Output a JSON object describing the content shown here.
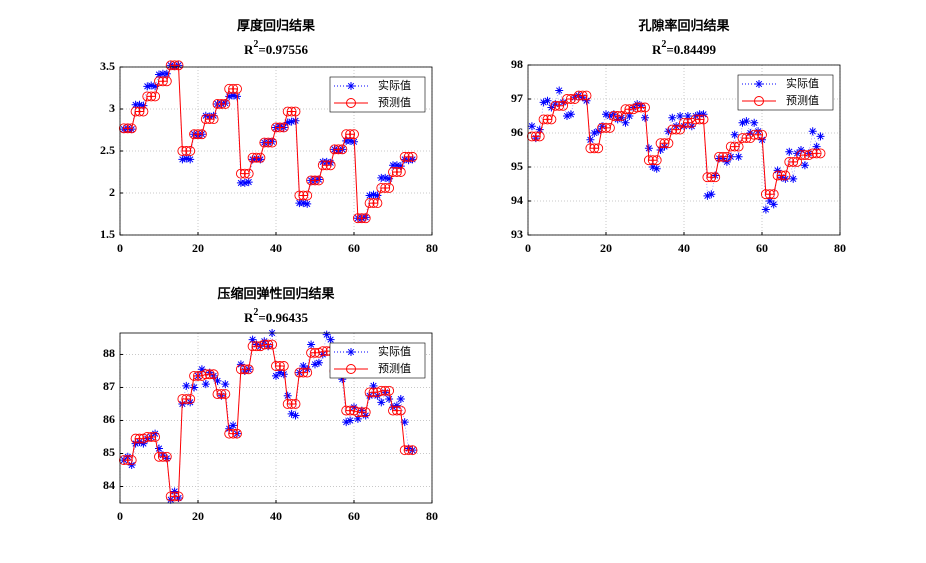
{
  "chart_data": [
    {
      "type": "line",
      "title": "厚度回归结果",
      "subtitle": {
        "base": "R",
        "sup": "2",
        "rest": "=0.97556"
      },
      "x": [
        1,
        2,
        3,
        4,
        5,
        6,
        7,
        8,
        9,
        10,
        11,
        12,
        13,
        14,
        15,
        16,
        17,
        18,
        19,
        20,
        21,
        22,
        23,
        24,
        25,
        26,
        27,
        28,
        29,
        30,
        31,
        32,
        33,
        34,
        35,
        36,
        37,
        38,
        39,
        40,
        41,
        42,
        43,
        44,
        45,
        46,
        47,
        48,
        49,
        50,
        51,
        52,
        53,
        54,
        55,
        56,
        57,
        58,
        59,
        60,
        61,
        62,
        63,
        64,
        65,
        66,
        67,
        68,
        69,
        70,
        71,
        72,
        73,
        74,
        75
      ],
      "series": [
        {
          "name": "实际值",
          "color": "#0000ff",
          "values": [
            2.76,
            2.77,
            2.76,
            3.05,
            3.05,
            3.04,
            3.27,
            3.28,
            3.27,
            3.41,
            3.42,
            3.42,
            3.52,
            3.51,
            3.52,
            2.4,
            2.41,
            2.4,
            2.7,
            2.69,
            2.7,
            2.92,
            2.91,
            2.92,
            3.06,
            3.06,
            3.07,
            3.15,
            3.16,
            3.15,
            2.12,
            2.12,
            2.13,
            2.4,
            2.41,
            2.4,
            2.6,
            2.6,
            2.61,
            2.78,
            2.79,
            2.78,
            2.84,
            2.85,
            2.86,
            1.88,
            1.88,
            1.87,
            2.15,
            2.15,
            2.16,
            2.37,
            2.37,
            2.36,
            2.52,
            2.51,
            2.52,
            2.62,
            2.62,
            2.61,
            1.7,
            1.7,
            1.71,
            1.97,
            1.98,
            1.97,
            2.18,
            2.18,
            2.17,
            2.33,
            2.33,
            2.32,
            2.4,
            2.39,
            2.4
          ]
        },
        {
          "name": "预测值",
          "color": "#ff0000",
          "values": [
            2.77,
            2.77,
            2.77,
            2.97,
            2.97,
            2.97,
            3.15,
            3.15,
            3.15,
            3.33,
            3.33,
            3.33,
            3.52,
            3.52,
            3.52,
            2.5,
            2.5,
            2.5,
            2.7,
            2.7,
            2.7,
            2.88,
            2.88,
            2.88,
            3.06,
            3.06,
            3.06,
            3.24,
            3.24,
            3.24,
            2.23,
            2.23,
            2.23,
            2.42,
            2.42,
            2.42,
            2.6,
            2.6,
            2.6,
            2.78,
            2.78,
            2.78,
            2.97,
            2.97,
            2.97,
            1.97,
            1.97,
            1.97,
            2.15,
            2.15,
            2.15,
            2.33,
            2.33,
            2.33,
            2.52,
            2.52,
            2.52,
            2.7,
            2.7,
            2.7,
            1.7,
            1.7,
            1.7,
            1.88,
            1.88,
            1.88,
            2.06,
            2.06,
            2.06,
            2.25,
            2.25,
            2.25,
            2.43,
            2.43,
            2.43
          ]
        }
      ],
      "xlim": [
        0,
        80
      ],
      "xticks": [
        0,
        20,
        40,
        60,
        80
      ],
      "ylim": [
        1.5,
        3.5
      ],
      "yticks": [
        1.5,
        2,
        2.5,
        3,
        3.5
      ],
      "grid": true,
      "legend": "upper right"
    },
    {
      "type": "line",
      "title": "孔隙率回归结果",
      "subtitle": {
        "base": "R",
        "sup": "2",
        "rest": "=0.84499"
      },
      "x": [
        1,
        2,
        3,
        4,
        5,
        6,
        7,
        8,
        9,
        10,
        11,
        12,
        13,
        14,
        15,
        16,
        17,
        18,
        19,
        20,
        21,
        22,
        23,
        24,
        25,
        26,
        27,
        28,
        29,
        30,
        31,
        32,
        33,
        34,
        35,
        36,
        37,
        38,
        39,
        40,
        41,
        42,
        43,
        44,
        45,
        46,
        47,
        48,
        49,
        50,
        51,
        52,
        53,
        54,
        55,
        56,
        57,
        58,
        59,
        60,
        61,
        62,
        63,
        64,
        65,
        66,
        67,
        68,
        69,
        70,
        71,
        72,
        73,
        74,
        75
      ],
      "series": [
        {
          "name": "实际值",
          "color": "#0000ff",
          "values": [
            96.2,
            95.85,
            96.1,
            96.9,
            96.95,
            96.75,
            96.85,
            97.25,
            96.9,
            96.5,
            96.55,
            97.05,
            97.1,
            97.05,
            96.95,
            95.8,
            96.0,
            96.05,
            96.2,
            96.55,
            96.5,
            96.55,
            96.4,
            96.45,
            96.3,
            96.5,
            96.75,
            96.85,
            96.8,
            96.45,
            95.55,
            95.0,
            94.95,
            95.5,
            95.6,
            96.05,
            96.45,
            96.2,
            96.5,
            96.2,
            96.5,
            96.2,
            96.5,
            96.55,
            96.55,
            94.15,
            94.2,
            94.75,
            95.25,
            95.25,
            95.15,
            95.3,
            95.95,
            95.3,
            96.3,
            96.35,
            96.0,
            96.3,
            96.05,
            95.8,
            93.75,
            94.0,
            93.9,
            94.9,
            94.7,
            94.65,
            95.45,
            94.65,
            95.4,
            95.5,
            95.05,
            95.4,
            96.05,
            95.6,
            95.9
          ]
        },
        {
          "name": "预测值",
          "color": "#ff0000",
          "values": [
            95.9,
            95.9,
            95.9,
            96.4,
            96.4,
            96.4,
            96.8,
            96.8,
            96.8,
            97.0,
            97.0,
            97.0,
            97.1,
            97.1,
            97.1,
            95.55,
            95.55,
            95.55,
            96.15,
            96.15,
            96.15,
            96.5,
            96.5,
            96.5,
            96.7,
            96.7,
            96.7,
            96.75,
            96.75,
            96.75,
            95.2,
            95.2,
            95.2,
            95.7,
            95.7,
            95.7,
            96.1,
            96.1,
            96.1,
            96.3,
            96.3,
            96.3,
            96.4,
            96.4,
            96.4,
            94.7,
            94.7,
            94.7,
            95.3,
            95.3,
            95.3,
            95.6,
            95.6,
            95.6,
            95.85,
            95.85,
            95.85,
            95.95,
            95.95,
            95.95,
            94.2,
            94.2,
            94.2,
            94.75,
            94.75,
            94.75,
            95.15,
            95.15,
            95.15,
            95.35,
            95.35,
            95.35,
            95.4,
            95.4,
            95.4
          ]
        }
      ],
      "xlim": [
        0,
        80
      ],
      "xticks": [
        0,
        20,
        40,
        60,
        80
      ],
      "ylim": [
        93,
        98
      ],
      "yticks": [
        93,
        94,
        95,
        96,
        97,
        98
      ],
      "grid": true,
      "legend": "upper right"
    },
    {
      "type": "line",
      "title": "压缩回弹性回归结果",
      "subtitle": {
        "base": "R",
        "sup": "2",
        "rest": "=0.96435"
      },
      "x": [
        1,
        2,
        3,
        4,
        5,
        6,
        7,
        8,
        9,
        10,
        11,
        12,
        13,
        14,
        15,
        16,
        17,
        18,
        19,
        20,
        21,
        22,
        23,
        24,
        25,
        26,
        27,
        28,
        29,
        30,
        31,
        32,
        33,
        34,
        35,
        36,
        37,
        38,
        39,
        40,
        41,
        42,
        43,
        44,
        45,
        46,
        47,
        48,
        49,
        50,
        51,
        52,
        53,
        54,
        55,
        56,
        57,
        58,
        59,
        60,
        61,
        62,
        63,
        64,
        65,
        66,
        67,
        68,
        69,
        70,
        71,
        72,
        73,
        74,
        75
      ],
      "series": [
        {
          "name": "实际值",
          "color": "#0000ff",
          "values": [
            84.8,
            84.9,
            84.65,
            85.3,
            85.35,
            85.3,
            85.45,
            85.5,
            85.6,
            85.15,
            84.95,
            84.85,
            83.6,
            83.85,
            83.65,
            86.5,
            87.05,
            86.55,
            87.0,
            87.35,
            87.55,
            87.1,
            87.45,
            87.35,
            87.2,
            86.75,
            87.1,
            85.75,
            85.85,
            85.6,
            87.7,
            87.5,
            87.55,
            88.45,
            88.3,
            88.25,
            88.4,
            88.25,
            88.65,
            87.35,
            87.45,
            87.4,
            86.75,
            86.2,
            86.15,
            87.45,
            87.65,
            87.55,
            88.3,
            87.7,
            87.75,
            88.0,
            88.6,
            88.45,
            87.9,
            87.45,
            87.25,
            85.95,
            86.0,
            86.4,
            86.05,
            86.3,
            86.15,
            86.75,
            87.05,
            86.75,
            86.55,
            86.85,
            86.65,
            86.4,
            86.45,
            86.65,
            85.95,
            85.15,
            85.1
          ]
        },
        {
          "name": "预测值",
          "color": "#ff0000",
          "values": [
            84.8,
            84.8,
            84.8,
            85.45,
            85.45,
            85.45,
            85.5,
            85.5,
            85.5,
            84.9,
            84.9,
            84.9,
            83.7,
            83.7,
            83.7,
            86.65,
            86.65,
            86.65,
            87.35,
            87.35,
            87.35,
            87.4,
            87.4,
            87.4,
            86.8,
            86.8,
            86.8,
            85.6,
            85.6,
            85.6,
            87.55,
            87.55,
            87.55,
            88.25,
            88.25,
            88.25,
            88.3,
            88.3,
            88.3,
            87.65,
            87.65,
            87.65,
            86.5,
            86.5,
            86.5,
            87.45,
            87.45,
            87.45,
            88.05,
            88.05,
            88.05,
            88.1,
            88.1,
            88.1,
            87.5,
            87.5,
            87.5,
            86.3,
            86.3,
            86.3,
            86.25,
            86.25,
            86.25,
            86.85,
            86.85,
            86.85,
            86.9,
            86.9,
            86.9,
            86.3,
            86.3,
            86.3,
            85.1,
            85.1,
            85.1
          ]
        }
      ],
      "xlim": [
        0,
        80
      ],
      "xticks": [
        0,
        20,
        40,
        60,
        80
      ],
      "ylim": [
        83.5,
        88.65
      ],
      "yticks": [
        84,
        85,
        86,
        87,
        88
      ],
      "grid": true,
      "legend": "upper right"
    }
  ]
}
